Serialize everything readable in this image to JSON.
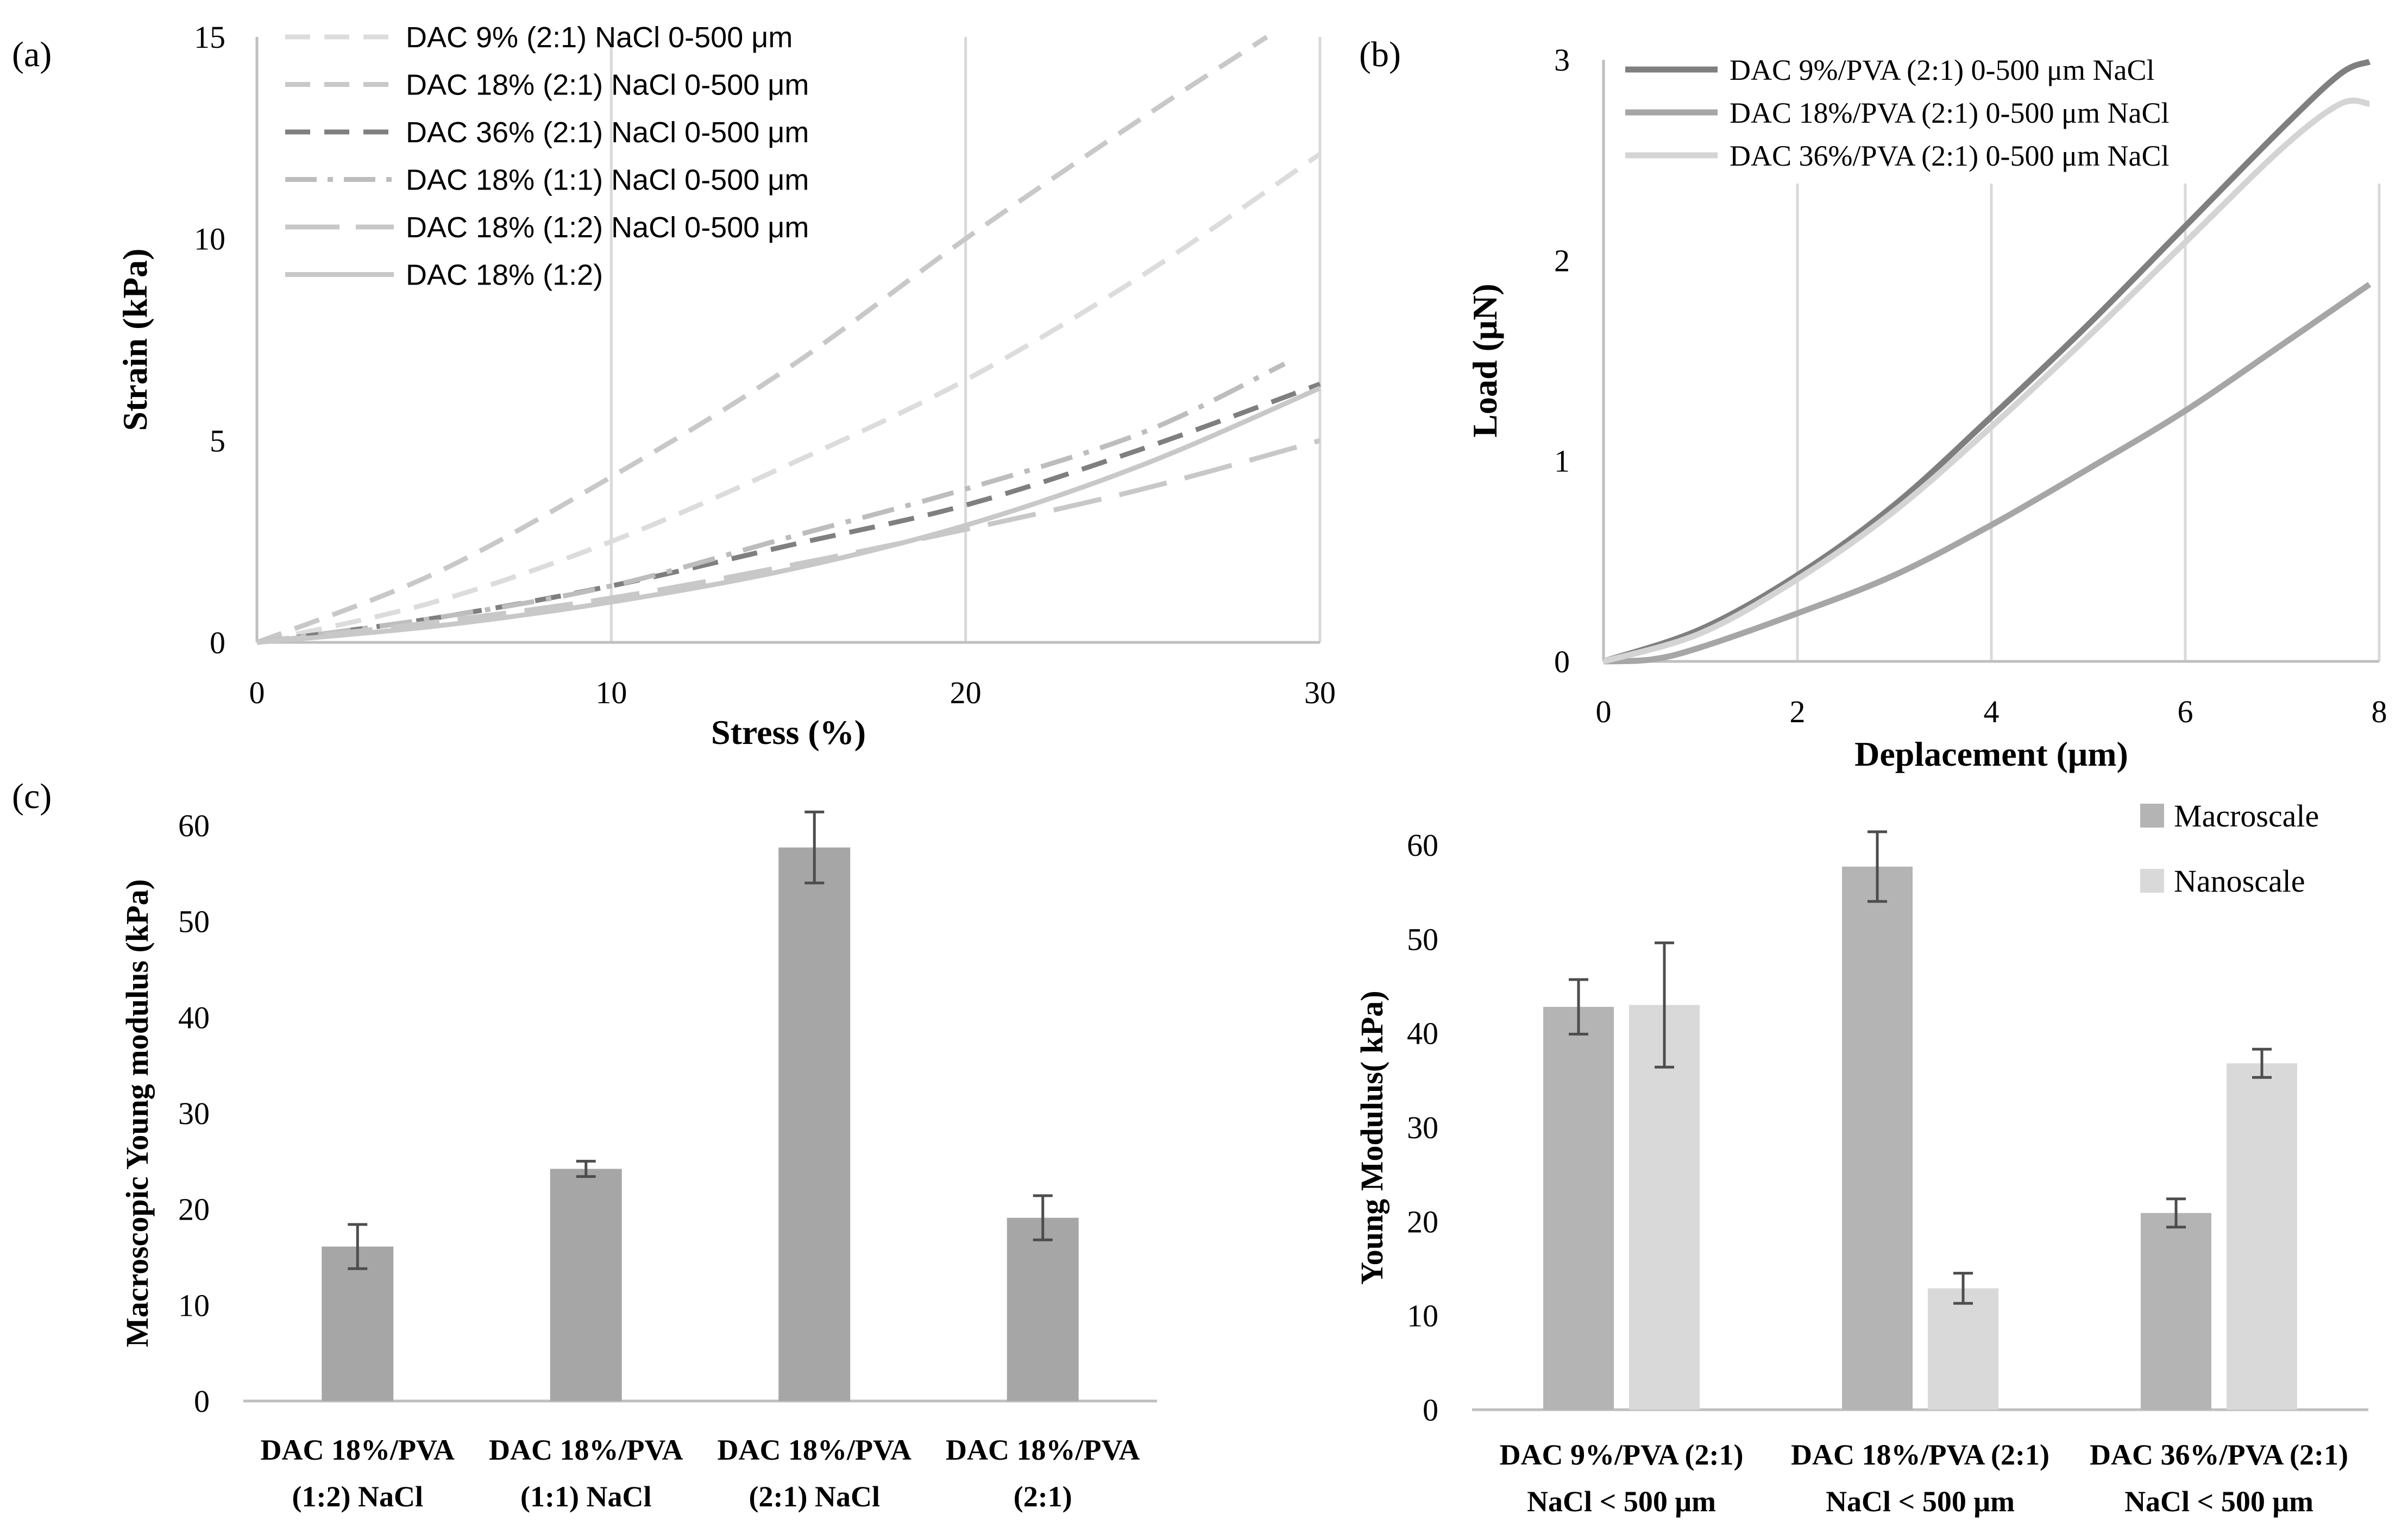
{
  "panel_labels": [
    "(a)",
    "(b)",
    "(c)"
  ],
  "colors": {
    "light": "#dcdcdc",
    "mid": "#bdbdbd",
    "dark": "#7f7f7f",
    "darker": "#6e6e6e",
    "bar": "#a6a6a6",
    "bar_macro": "#b4b4b4",
    "bar_nano": "#d9d9d9",
    "grid": "#d9d9d9",
    "axis": "#bfbfbf",
    "error": "#4d4d4d"
  },
  "chart_data": [
    {
      "id": "a",
      "type": "line",
      "xlabel": "Stress (%)",
      "ylabel": "Strain (kPa)",
      "xlim": [
        0,
        30
      ],
      "ylim": [
        0,
        15
      ],
      "xticks": [
        0,
        10,
        20,
        30
      ],
      "yticks": [
        0,
        5,
        10,
        15
      ],
      "legend_position": "top-left",
      "series": [
        {
          "name": "DAC 9% (2:1) NaCl 0-500 μm",
          "color": "#dcdcdc",
          "dash": "dash",
          "x": [
            0,
            5,
            10,
            15,
            20,
            25,
            30
          ],
          "y": [
            0,
            1.0,
            2.5,
            4.4,
            6.5,
            9.1,
            12.1
          ]
        },
        {
          "name": "DAC 18% (2:1) NaCl 0-500 μm",
          "color": "#c8c8c8",
          "dash": "dash",
          "x": [
            0,
            5,
            10,
            15,
            20,
            25,
            28.5
          ],
          "y": [
            0,
            1.7,
            4.1,
            6.8,
            10.0,
            13.0,
            15.0
          ]
        },
        {
          "name": "DAC 36% (2:1) NaCl 0-500 μm",
          "color": "#7f7f7f",
          "dash": "dash",
          "x": [
            0,
            5,
            10,
            15,
            20,
            25,
            30
          ],
          "y": [
            0,
            0.6,
            1.4,
            2.4,
            3.4,
            4.8,
            6.4
          ]
        },
        {
          "name": "DAC 18% (1:1) NaCl 0-500 μm",
          "color": "#bdbdbd",
          "dash": "dashdot",
          "x": [
            0,
            5,
            10,
            15,
            20,
            25,
            29
          ],
          "y": [
            0,
            0.6,
            1.4,
            2.6,
            3.8,
            5.2,
            6.9
          ]
        },
        {
          "name": "DAC 18% (1:2) NaCl 0-500 μm",
          "color": "#c8c8c8",
          "dash": "longdash",
          "x": [
            0,
            5,
            10,
            15,
            20,
            25,
            30
          ],
          "y": [
            0,
            0.5,
            1.1,
            1.9,
            2.8,
            3.8,
            5.0
          ]
        },
        {
          "name": "DAC 18% (1:2)",
          "color": "#c8c8c8",
          "dash": "solid",
          "x": [
            0,
            5,
            10,
            15,
            20,
            25,
            30
          ],
          "y": [
            0,
            0.4,
            1.0,
            1.8,
            2.9,
            4.4,
            6.3
          ]
        }
      ]
    },
    {
      "id": "b",
      "type": "line",
      "xlabel": "Deplacement (μm)",
      "ylabel": "Load (μN)",
      "xlim": [
        0,
        8
      ],
      "ylim": [
        0,
        3
      ],
      "xticks": [
        0,
        2,
        4,
        6,
        8
      ],
      "yticks": [
        0,
        1,
        2,
        3
      ],
      "legend_position": "top-left",
      "series": [
        {
          "name": "DAC 9%/PVA (2:1) 0-500 μm NaCl",
          "color": "#7f7f7f",
          "dash": "solid",
          "x": [
            0,
            1,
            2,
            3,
            4,
            5,
            6,
            7,
            7.6,
            7.9
          ],
          "y": [
            0,
            0.16,
            0.43,
            0.78,
            1.22,
            1.68,
            2.17,
            2.66,
            2.93,
            2.99
          ]
        },
        {
          "name": "DAC 18%/PVA (2:1) 0-500 μm NaCl",
          "color": "#a6a6a6",
          "dash": "solid",
          "x": [
            0,
            0.5,
            1,
            2,
            3,
            4,
            5,
            6,
            7,
            7.9
          ],
          "y": [
            0,
            0.01,
            0.07,
            0.24,
            0.43,
            0.68,
            0.96,
            1.25,
            1.58,
            1.88
          ]
        },
        {
          "name": "DAC 36%/PVA (2:1) 0-500 μm NaCl",
          "color": "#d4d4d4",
          "dash": "solid",
          "x": [
            0,
            1,
            2,
            3,
            4,
            5,
            6,
            7,
            7.6,
            7.9
          ],
          "y": [
            0,
            0.14,
            0.41,
            0.75,
            1.17,
            1.62,
            2.09,
            2.56,
            2.78,
            2.78
          ]
        }
      ]
    },
    {
      "id": "c1",
      "type": "bar",
      "ylabel": "Macroscopic Young modulus (kPa)",
      "ylim": [
        0,
        60
      ],
      "yticks": [
        0,
        10,
        20,
        30,
        40,
        50,
        60
      ],
      "categories": [
        [
          "DAC 18%/PVA",
          "(1:2) NaCl"
        ],
        [
          "DAC 18%/PVA",
          "(1:1) NaCl"
        ],
        [
          "DAC 18%/PVA",
          "(2:1) NaCl"
        ],
        [
          "DAC 18%/PVA",
          "(2:1)"
        ]
      ],
      "series": [
        {
          "name": "Macroscopic",
          "color": "#a6a6a6",
          "values": [
            16.1,
            24.2,
            57.7,
            19.1
          ],
          "errors": [
            2.3,
            0.8,
            3.7,
            2.3
          ]
        }
      ]
    },
    {
      "id": "c2",
      "type": "bar",
      "ylabel": "Young Modulus( kPa)",
      "ylim": [
        0,
        60
      ],
      "yticks": [
        0,
        10,
        20,
        30,
        40,
        50,
        60
      ],
      "legend_position": "top-right",
      "categories": [
        [
          "DAC 9%/PVA (2:1)",
          "NaCl < 500 μm"
        ],
        [
          "DAC 18%/PVA (2:1)",
          "NaCl < 500 μm"
        ],
        [
          "DAC 36%/PVA (2:1)",
          "NaCl  < 500 μm"
        ]
      ],
      "series": [
        {
          "name": "Macroscale",
          "color": "#b4b4b4",
          "values": [
            42.8,
            57.7,
            20.9
          ],
          "errors": [
            2.9,
            3.7,
            1.5
          ]
        },
        {
          "name": "Nanoscale",
          "color": "#d9d9d9",
          "values": [
            43.0,
            12.9,
            36.8
          ],
          "errors": [
            6.6,
            1.6,
            1.5
          ]
        }
      ]
    }
  ]
}
